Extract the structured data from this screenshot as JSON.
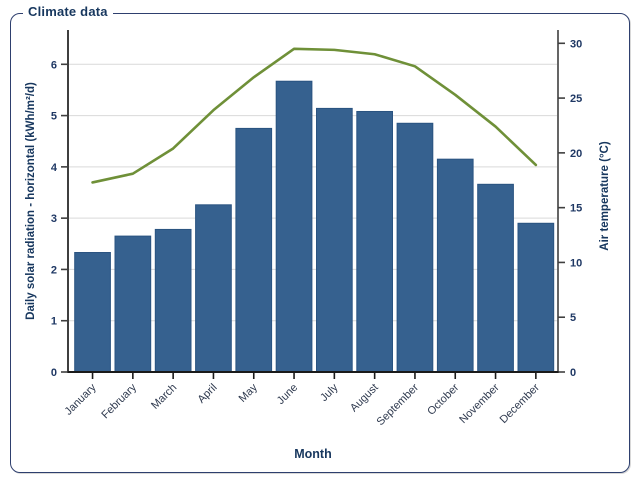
{
  "group_box": {
    "title": "Climate data"
  },
  "chart_data": {
    "type": "bar",
    "title": "Climate data",
    "xlabel": "Month",
    "categories": [
      "January",
      "February",
      "March",
      "April",
      "May",
      "June",
      "July",
      "August",
      "September",
      "October",
      "November",
      "December"
    ],
    "series": [
      {
        "name": "Daily solar radiation - horizontal (kWh/m²/d)",
        "type": "bar",
        "axis": "left",
        "color": "#36618f",
        "border_color": "#2a5380",
        "values": [
          2.33,
          2.65,
          2.78,
          3.26,
          4.75,
          5.67,
          5.14,
          5.08,
          4.85,
          4.15,
          3.66,
          2.9
        ]
      },
      {
        "name": "Air temperature (°C)",
        "type": "line",
        "axis": "right",
        "color": "#6f9038",
        "values": [
          17.3,
          18.1,
          20.4,
          23.9,
          26.9,
          29.5,
          29.4,
          29.0,
          27.9,
          25.3,
          22.4,
          18.9
        ]
      }
    ],
    "y_left": {
      "label": "Daily solar radiation - horizontal (kWh/m²/d)",
      "min": 0,
      "max": 6,
      "tick_step": 1
    },
    "y_right": {
      "label": "Air temperature (°C)",
      "min": 0,
      "max": 30,
      "tick_step": 5
    },
    "grid": "horizontal",
    "legend_position": "none",
    "colors": {
      "axis_title": "#17375e",
      "tick_label": "#1f3864",
      "month_label": "#2f3a4f",
      "gridline": "#d9d9d9",
      "axis_line": "#3f3f3f",
      "baseline": "#1a1a1a"
    }
  }
}
